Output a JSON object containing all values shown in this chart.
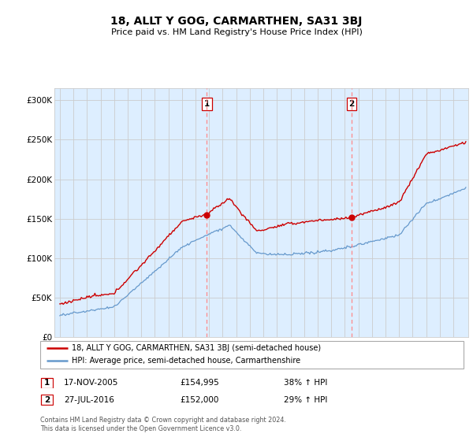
{
  "title": "18, ALLT Y GOG, CARMARTHEN, SA31 3BJ",
  "subtitle": "Price paid vs. HM Land Registry's House Price Index (HPI)",
  "ylabel_ticks": [
    "£0",
    "£50K",
    "£100K",
    "£150K",
    "£200K",
    "£250K",
    "£300K"
  ],
  "ytick_values": [
    0,
    50000,
    100000,
    150000,
    200000,
    250000,
    300000
  ],
  "ylim": [
    0,
    315000
  ],
  "sale1_year": 2005.875,
  "sale1_price": 154995,
  "sale2_year": 2016.54,
  "sale2_price": 152000,
  "sale1_date": "17-NOV-2005",
  "sale1_pct": "38% ↑ HPI",
  "sale2_date": "27-JUL-2016",
  "sale2_pct": "29% ↑ HPI",
  "legend_red": "18, ALLT Y GOG, CARMARTHEN, SA31 3BJ (semi-detached house)",
  "legend_blue": "HPI: Average price, semi-detached house, Carmarthenshire",
  "footer": "Contains HM Land Registry data © Crown copyright and database right 2024.\nThis data is licensed under the Open Government Licence v3.0.",
  "red_color": "#cc0000",
  "blue_color": "#6699cc",
  "dashed_color": "#ff8888",
  "grid_color": "#cccccc",
  "plot_bg": "#ddeeff",
  "fig_bg": "#ffffff"
}
